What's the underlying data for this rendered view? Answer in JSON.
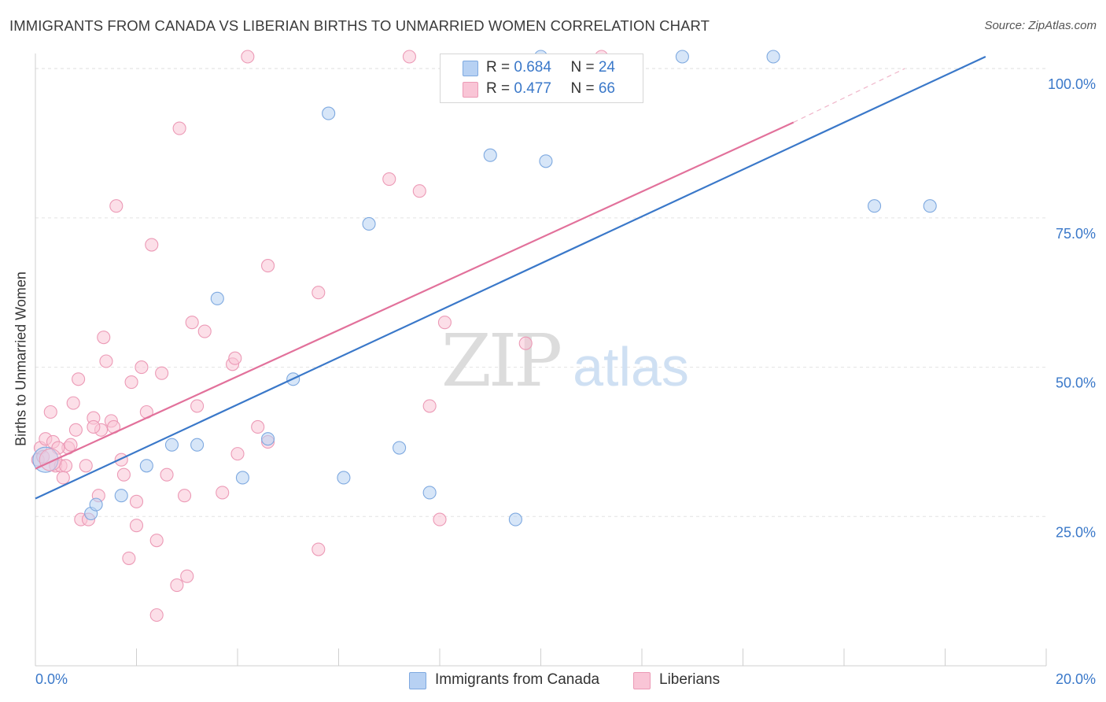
{
  "title": "IMMIGRANTS FROM CANADA VS LIBERIAN BIRTHS TO UNMARRIED WOMEN CORRELATION CHART",
  "source": "Source: ZipAtlas.com",
  "watermark": {
    "zip": "ZIP",
    "atlas": "atlas"
  },
  "legend": {
    "r_label": "R = ",
    "n_label": "N = ",
    "items": [
      {
        "r": "0.684",
        "n": "24",
        "color": "#b7d1f3",
        "border": "#7ea9e0"
      },
      {
        "r": "0.477",
        "n": "66",
        "color": "#f9c5d6",
        "border": "#ec9ab6"
      }
    ]
  },
  "chart_data": {
    "type": "scatter",
    "xlabel": "",
    "ylabel": "Births to Unmarried Women",
    "x_tick_labels": [
      "0.0%",
      "20.0%"
    ],
    "y_tick_labels": [
      "25.0%",
      "50.0%",
      "75.0%",
      "100.0%"
    ],
    "y_tick_values": [
      25,
      50,
      75,
      100
    ],
    "xlim": [
      0,
      20
    ],
    "ylim": [
      0,
      102
    ],
    "grid": true,
    "legend_position": "bottom",
    "series": [
      {
        "name": "Immigrants from Canada",
        "color": "#3a78c9",
        "fill": "#b7d1f3",
        "trend": {
          "x0": 0,
          "y0": 28,
          "x1": 18.8,
          "y1": 102
        },
        "points": [
          [
            0.2,
            34.5
          ],
          [
            1.1,
            25.5
          ],
          [
            1.2,
            27
          ],
          [
            1.7,
            28.5
          ],
          [
            2.2,
            33.5
          ],
          [
            2.7,
            37
          ],
          [
            3.2,
            37
          ],
          [
            3.6,
            61.5
          ],
          [
            4.1,
            31.5
          ],
          [
            4.6,
            38
          ],
          [
            5.1,
            48
          ],
          [
            5.8,
            92.5
          ],
          [
            6.1,
            31.5
          ],
          [
            6.6,
            74
          ],
          [
            7.2,
            36.5
          ],
          [
            7.8,
            29
          ],
          [
            9.0,
            85.5
          ],
          [
            9.5,
            24.5
          ],
          [
            10.0,
            102
          ],
          [
            10.1,
            84.5
          ],
          [
            12.8,
            102
          ],
          [
            14.6,
            102
          ],
          [
            16.6,
            77
          ],
          [
            17.7,
            77
          ]
        ]
      },
      {
        "name": "Liberians",
        "color": "#e2719b",
        "fill": "#f9c5d6",
        "trend": {
          "x0": 0,
          "y0": 33,
          "x1": 15.0,
          "y1": 91
        },
        "trend_dashed": {
          "x0": 15.0,
          "y0": 91,
          "x1": 17.2,
          "y1": 100
        },
        "points": [
          [
            0.05,
            34.5
          ],
          [
            0.1,
            36.5
          ],
          [
            0.2,
            38
          ],
          [
            0.3,
            42.5
          ],
          [
            0.35,
            37.5
          ],
          [
            0.4,
            33.5
          ],
          [
            0.5,
            33.5
          ],
          [
            0.55,
            31.5
          ],
          [
            0.65,
            36.5
          ],
          [
            0.7,
            37
          ],
          [
            0.75,
            44
          ],
          [
            0.8,
            39.5
          ],
          [
            0.85,
            48
          ],
          [
            0.9,
            24.5
          ],
          [
            1.0,
            33.5
          ],
          [
            1.05,
            24.5
          ],
          [
            1.15,
            41.5
          ],
          [
            1.25,
            28.5
          ],
          [
            1.3,
            39.5
          ],
          [
            1.35,
            55
          ],
          [
            1.4,
            51
          ],
          [
            1.5,
            41
          ],
          [
            1.55,
            40
          ],
          [
            1.6,
            77
          ],
          [
            1.7,
            34.5
          ],
          [
            1.75,
            32
          ],
          [
            1.85,
            18
          ],
          [
            1.9,
            47.5
          ],
          [
            2.0,
            27.5
          ],
          [
            2.0,
            23.5
          ],
          [
            2.1,
            50
          ],
          [
            2.2,
            42.5
          ],
          [
            2.3,
            70.5
          ],
          [
            2.4,
            21
          ],
          [
            2.4,
            8.5
          ],
          [
            2.5,
            49
          ],
          [
            2.6,
            32
          ],
          [
            2.8,
            13.5
          ],
          [
            2.85,
            90
          ],
          [
            2.95,
            28.5
          ],
          [
            3.0,
            15
          ],
          [
            3.1,
            57.5
          ],
          [
            3.2,
            43.5
          ],
          [
            3.35,
            56
          ],
          [
            3.7,
            29
          ],
          [
            3.9,
            50.5
          ],
          [
            3.95,
            51.5
          ],
          [
            4.0,
            35.5
          ],
          [
            4.2,
            102
          ],
          [
            4.4,
            40
          ],
          [
            4.6,
            37.5
          ],
          [
            4.6,
            67
          ],
          [
            5.6,
            62.5
          ],
          [
            5.6,
            19.5
          ],
          [
            7.0,
            81.5
          ],
          [
            7.4,
            102
          ],
          [
            7.6,
            79.5
          ],
          [
            7.8,
            43.5
          ],
          [
            8.0,
            24.5
          ],
          [
            8.1,
            57.5
          ],
          [
            9.7,
            54
          ],
          [
            11.2,
            102
          ],
          [
            0.15,
            35
          ],
          [
            0.45,
            36.5
          ],
          [
            1.15,
            40
          ],
          [
            0.6,
            33.5
          ]
        ]
      }
    ]
  }
}
